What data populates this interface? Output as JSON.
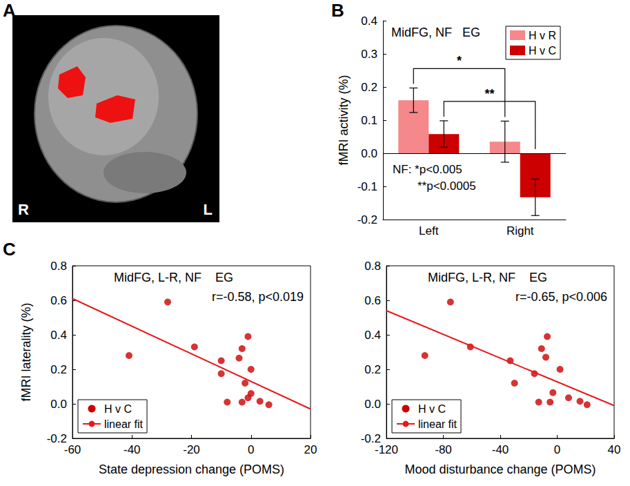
{
  "chart_data": [
    {
      "type": "image",
      "panel": "A",
      "labels": [
        "R",
        "L"
      ]
    },
    {
      "type": "bar",
      "panel": "B",
      "title": "MidFG, NF   EG",
      "y_label": "fMRI activity (%)",
      "categories": [
        "Left",
        "Right"
      ],
      "series": [
        {
          "name": "H v R",
          "color": "#f4888a",
          "values": [
            0.16,
            0.035
          ],
          "errors": [
            0.037,
            0.062
          ]
        },
        {
          "name": "H v C",
          "color": "#cc0000",
          "values": [
            0.058,
            -0.133
          ],
          "errors": [
            0.04,
            0.055
          ]
        }
      ],
      "ylim": [
        -0.2,
        0.4
      ],
      "yticks": [
        -0.2,
        -0.1,
        {
          "value": 0,
          "label": "0.0"
        },
        0.1,
        0.2,
        0.3,
        0.4
      ],
      "grid": false,
      "legend": "upper right",
      "comparisons": [
        {
          "label": "*",
          "series": "H v R",
          "from": "Left",
          "to": "Right"
        },
        {
          "label": "**",
          "series": "H v C",
          "from": "Left",
          "to": "Right"
        }
      ],
      "notes": [
        "NF: *p<0.005",
        "**p<0.0005"
      ]
    },
    {
      "type": "scatter",
      "panel": "C",
      "title": "MidFG, L-R, NF    EG",
      "annotation": "r=-0.58, p<0.019",
      "x_label": "State depression change (POMS)",
      "y_label": "fMRI laterality (%)",
      "xlim": [
        -60,
        20
      ],
      "xticks": [
        -60,
        -40,
        -20,
        0,
        20
      ],
      "ylim": [
        -0.2,
        0.8
      ],
      "yticks": [
        -0.2,
        {
          "value": 0,
          "label": "0.0"
        },
        0.2,
        0.4,
        0.6,
        0.8
      ],
      "grid": false,
      "legend": "lower left",
      "series": [
        {
          "name": "H v C",
          "type": "scatter",
          "marker": "circle",
          "color": "#cc0000",
          "x": [
            -41,
            -28,
            -19,
            -10,
            -10,
            -8,
            -4,
            -3,
            -3,
            -2,
            -1,
            0,
            0,
            -1,
            3,
            6
          ],
          "values": [
            0.28,
            0.59,
            0.33,
            0.25,
            0.175,
            0.01,
            0.265,
            0.32,
            0.01,
            0.12,
            0.39,
            0.2,
            0.06,
            0.035,
            0.015,
            -0.005
          ]
        },
        {
          "name": "linear fit",
          "type": "line",
          "line_style": "solid",
          "color": "#e41a1c",
          "x": [
            -60,
            20
          ],
          "values": [
            0.61,
            -0.03
          ]
        }
      ]
    },
    {
      "type": "scatter",
      "title": "MidFG, L-R, NF    EG",
      "annotation": "r=-0.65, p<0.006",
      "x_label": "Mood disturbance change (POMS)",
      "xlim": [
        -120,
        40
      ],
      "xticks": [
        -120,
        -80,
        -40,
        0,
        40
      ],
      "ylim": [
        -0.2,
        0.8
      ],
      "yticks": [
        -0.2,
        {
          "value": 0,
          "label": "0.0"
        },
        0.2,
        0.4,
        0.6,
        0.8
      ],
      "grid": false,
      "legend": "lower left",
      "series": [
        {
          "name": "H v C",
          "type": "scatter",
          "marker": "circle",
          "color": "#cc0000",
          "x": [
            -93,
            -75,
            -61,
            -33,
            -30,
            -16,
            -13,
            -11,
            -8,
            -7,
            -5,
            -3,
            2,
            8,
            16,
            21
          ],
          "values": [
            0.28,
            0.59,
            0.33,
            0.25,
            0.12,
            0.175,
            0.01,
            0.32,
            0.27,
            0.39,
            0.01,
            0.065,
            0.2,
            0.035,
            0.015,
            -0.005
          ]
        },
        {
          "name": "linear fit",
          "type": "line",
          "line_style": "solid",
          "color": "#e41a1c",
          "x": [
            -120,
            40
          ],
          "values": [
            0.54,
            -0.01
          ]
        }
      ]
    }
  ]
}
